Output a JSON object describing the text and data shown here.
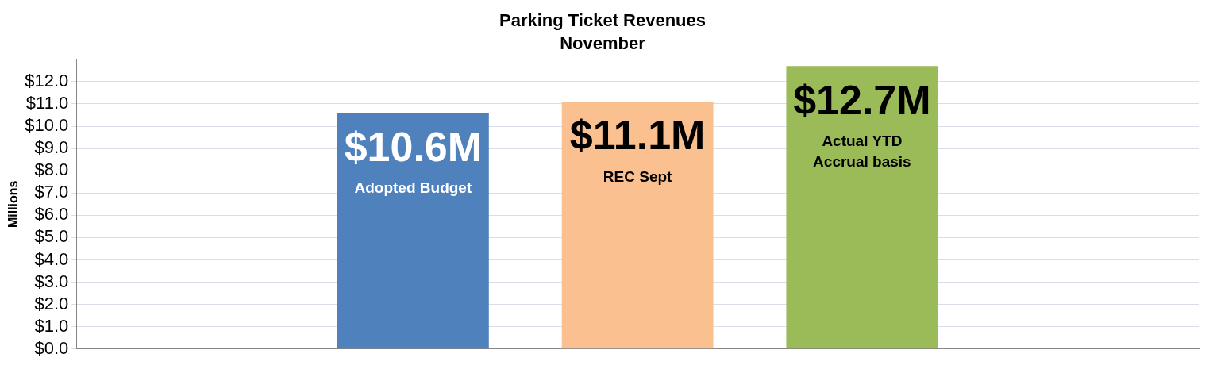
{
  "chart_data": {
    "type": "bar",
    "title": "Parking Ticket Revenues",
    "subtitle": "November",
    "ylabel": "Millions",
    "categories": [
      null,
      "Adopted Budget",
      "REC Sept",
      "Actual YTD Accrual basis",
      null
    ],
    "values": [
      null,
      10.6,
      11.1,
      12.7,
      null
    ],
    "colors": [
      "#4f81bd",
      "#4f81bd",
      "#fac090",
      "#9bbb59",
      "#9bbb59"
    ],
    "value_labels": [
      null,
      "$10.6M",
      "$11.1M",
      "$12.7M",
      null
    ],
    "ylim": [
      0,
      13
    ],
    "yticks": [
      {
        "value": 0,
        "label": "$0.0"
      },
      {
        "value": 1,
        "label": "$1.0"
      },
      {
        "value": 2,
        "label": "$2.0"
      },
      {
        "value": 3,
        "label": "$3.0"
      },
      {
        "value": 4,
        "label": "$4.0"
      },
      {
        "value": 5,
        "label": "$5.0"
      },
      {
        "value": 6,
        "label": "$6.0"
      },
      {
        "value": 7,
        "label": "$7.0"
      },
      {
        "value": 8,
        "label": "$8.0"
      },
      {
        "value": 9,
        "label": "$9.0"
      },
      {
        "value": 10,
        "label": "$10.0"
      },
      {
        "value": 11,
        "label": "$11.0"
      },
      {
        "value": 12,
        "label": "$12.0"
      }
    ],
    "grid": "y",
    "legend": false,
    "tick_labels": "y"
  }
}
